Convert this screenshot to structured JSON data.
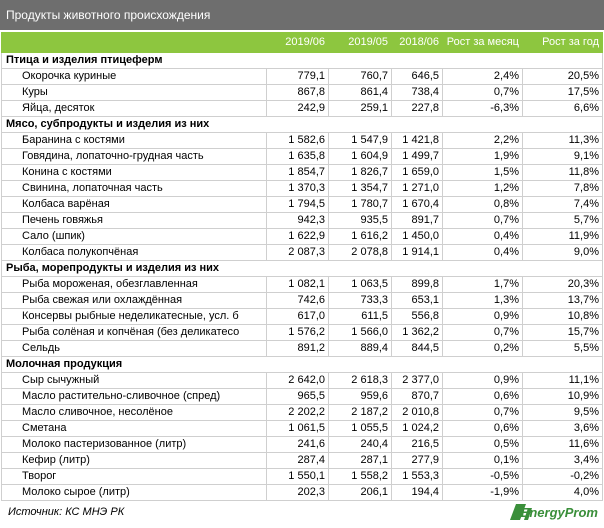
{
  "header": {
    "title": "Продукты животного происхождения"
  },
  "table": {
    "columns": [
      "2019/06",
      "2019/05",
      "2018/06",
      "Рост за месяц",
      "Рост за год"
    ],
    "groups": [
      {
        "name": "Птица и изделия птицеферм",
        "rows": [
          [
            "Окорочка куриные",
            "779,1",
            "760,7",
            "646,5",
            "2,4%",
            "20,5%"
          ],
          [
            "Куры",
            "867,8",
            "861,4",
            "738,4",
            "0,7%",
            "17,5%"
          ],
          [
            "Яйца, десяток",
            "242,9",
            "259,1",
            "227,8",
            "-6,3%",
            "6,6%"
          ]
        ]
      },
      {
        "name": "Мясо, субпродукты и изделия из них",
        "rows": [
          [
            "Баранина с костями",
            "1 582,6",
            "1 547,9",
            "1 421,8",
            "2,2%",
            "11,3%"
          ],
          [
            "Говядина, лопаточно-грудная часть",
            "1 635,8",
            "1 604,9",
            "1 499,7",
            "1,9%",
            "9,1%"
          ],
          [
            "Конина с костями",
            "1 854,7",
            "1 826,7",
            "1 659,0",
            "1,5%",
            "11,8%"
          ],
          [
            "Свинина, лопаточная часть",
            "1 370,3",
            "1 354,7",
            "1 271,0",
            "1,2%",
            "7,8%"
          ],
          [
            "Колбаса варёная",
            "1 794,5",
            "1 780,7",
            "1 670,4",
            "0,8%",
            "7,4%"
          ],
          [
            "Печень говяжья",
            "942,3",
            "935,5",
            "891,7",
            "0,7%",
            "5,7%"
          ],
          [
            "Сало (шпик)",
            "1 622,9",
            "1 616,2",
            "1 450,0",
            "0,4%",
            "11,9%"
          ],
          [
            "Колбаса полукопчёная",
            "2 087,3",
            "2 078,8",
            "1 914,1",
            "0,4%",
            "9,0%"
          ]
        ]
      },
      {
        "name": "Рыба, морепродукты и изделия из них",
        "rows": [
          [
            "Рыба мороженая, обезглавленная",
            "1 082,1",
            "1 063,5",
            "899,8",
            "1,7%",
            "20,3%"
          ],
          [
            "Рыба свежая или охлаждённая",
            "742,6",
            "733,3",
            "653,1",
            "1,3%",
            "13,7%"
          ],
          [
            "Консервы рыбные неделикатесные, усл. б",
            "617,0",
            "611,5",
            "556,8",
            "0,9%",
            "10,8%"
          ],
          [
            "Рыба солёная и копчёная (без деликатесо",
            "1 576,2",
            "1 566,0",
            "1 362,2",
            "0,7%",
            "15,7%"
          ],
          [
            "Сельдь",
            "891,2",
            "889,4",
            "844,5",
            "0,2%",
            "5,5%"
          ]
        ]
      },
      {
        "name": "Молочная продукция",
        "rows": [
          [
            "Сыр сычужный",
            "2 642,0",
            "2 618,3",
            "2 377,0",
            "0,9%",
            "11,1%"
          ],
          [
            "Масло растительно-сливочное (спред)",
            "965,5",
            "959,6",
            "870,7",
            "0,6%",
            "10,9%"
          ],
          [
            "Масло сливочное, несолёное",
            "2 202,2",
            "2 187,2",
            "2 010,8",
            "0,7%",
            "9,5%"
          ],
          [
            "Сметана",
            "1 061,5",
            "1 055,5",
            "1 024,2",
            "0,6%",
            "3,6%"
          ],
          [
            "Молоко пастеризованное (литр)",
            "241,6",
            "240,4",
            "216,5",
            "0,5%",
            "11,6%"
          ],
          [
            "Кефир (литр)",
            "287,4",
            "287,1",
            "277,9",
            "0,1%",
            "3,4%"
          ],
          [
            "Творог",
            "1 550,1",
            "1 558,2",
            "1 553,3",
            "-0,5%",
            "-0,2%"
          ],
          [
            "Молоко сырое (литр)",
            "202,3",
            "206,1",
            "194,4",
            "-1,9%",
            "4,0%"
          ]
        ]
      }
    ]
  },
  "footer": {
    "source": "Источник: КС МНЭ РК",
    "logo": "EnergyProm"
  }
}
